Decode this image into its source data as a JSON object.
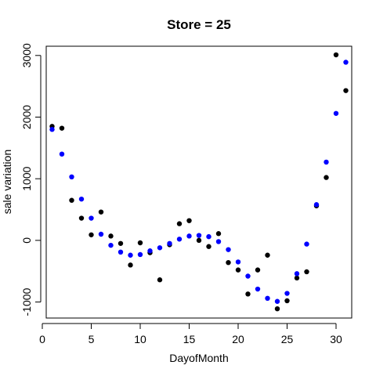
{
  "chart_data": {
    "type": "scatter",
    "title": "Store = 25",
    "xlabel": "DayofMonth",
    "ylabel": "sale variation",
    "xlim": [
      0.4,
      31.6
    ],
    "ylim": [
      -1260,
      3150
    ],
    "x_ticks": [
      0,
      5,
      10,
      15,
      20,
      25,
      30
    ],
    "y_ticks": [
      -1000,
      0,
      1000,
      2000,
      3000
    ],
    "grid": false,
    "series": [
      {
        "color": "#000000",
        "points": [
          [
            1,
            1850
          ],
          [
            2,
            1820
          ],
          [
            3,
            650
          ],
          [
            4,
            360
          ],
          [
            5,
            90
          ],
          [
            6,
            460
          ],
          [
            7,
            70
          ],
          [
            8,
            -50
          ],
          [
            9,
            -400
          ],
          [
            10,
            -40
          ],
          [
            11,
            -200
          ],
          [
            12,
            -640
          ],
          [
            13,
            -70
          ],
          [
            14,
            270
          ],
          [
            15,
            320
          ],
          [
            16,
            0
          ],
          [
            17,
            -100
          ],
          [
            18,
            110
          ],
          [
            19,
            -360
          ],
          [
            20,
            -480
          ],
          [
            21,
            -870
          ],
          [
            22,
            -480
          ],
          [
            23,
            -240
          ],
          [
            24,
            -1110
          ],
          [
            25,
            -980
          ],
          [
            26,
            -610
          ],
          [
            27,
            -510
          ],
          [
            28,
            560
          ],
          [
            29,
            1020
          ],
          [
            30,
            3010
          ],
          [
            31,
            2430
          ]
        ]
      },
      {
        "color": "#0000ff",
        "points": [
          [
            1,
            1800
          ],
          [
            2,
            1400
          ],
          [
            3,
            1030
          ],
          [
            4,
            670
          ],
          [
            5,
            360
          ],
          [
            6,
            100
          ],
          [
            7,
            -80
          ],
          [
            8,
            -190
          ],
          [
            9,
            -240
          ],
          [
            10,
            -230
          ],
          [
            11,
            -170
          ],
          [
            12,
            -120
          ],
          [
            13,
            -50
          ],
          [
            14,
            20
          ],
          [
            15,
            70
          ],
          [
            16,
            80
          ],
          [
            17,
            60
          ],
          [
            18,
            -20
          ],
          [
            19,
            -150
          ],
          [
            20,
            -350
          ],
          [
            21,
            -580
          ],
          [
            22,
            -790
          ],
          [
            23,
            -940
          ],
          [
            24,
            -990
          ],
          [
            25,
            -860
          ],
          [
            26,
            -540
          ],
          [
            27,
            -60
          ],
          [
            28,
            580
          ],
          [
            29,
            1270
          ],
          [
            30,
            2060
          ],
          [
            31,
            2890
          ]
        ]
      }
    ]
  }
}
